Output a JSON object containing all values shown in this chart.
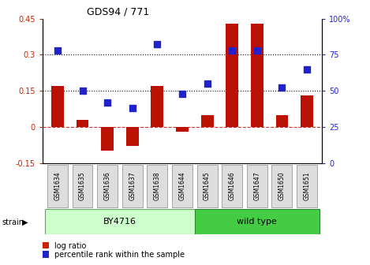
{
  "title": "GDS94 / 771",
  "samples": [
    "GSM1634",
    "GSM1635",
    "GSM1636",
    "GSM1637",
    "GSM1638",
    "GSM1644",
    "GSM1645",
    "GSM1646",
    "GSM1647",
    "GSM1650",
    "GSM1651"
  ],
  "log_ratio": [
    0.17,
    0.03,
    -0.1,
    -0.08,
    0.17,
    -0.02,
    0.05,
    0.43,
    0.43,
    0.05,
    0.13
  ],
  "percentile_rank": [
    78,
    50,
    42,
    38,
    82,
    48,
    55,
    78,
    78,
    52,
    65
  ],
  "ylim_left": [
    -0.15,
    0.45
  ],
  "ylim_right": [
    0,
    100
  ],
  "left_ticks": [
    -0.15,
    0,
    0.15,
    0.3,
    0.45
  ],
  "right_ticks": [
    0,
    25,
    50,
    75,
    100
  ],
  "hline_values": [
    0.15,
    0.3
  ],
  "bar_color": "#BB1100",
  "dot_color": "#2222CC",
  "zero_line_color": "#CC3333",
  "hline_color": "#111111",
  "by4716_n": 6,
  "wildtype_n": 5,
  "by4716_color": "#CCFFCC",
  "wildtype_color": "#44CC44",
  "by4716_edge": "#55AA55",
  "wildtype_edge": "#228822",
  "strain_label": "strain",
  "by4716_label": "BY4716",
  "wildtype_label": "wild type",
  "legend_logratio": "log ratio",
  "legend_percentile": "percentile rank within the sample",
  "bar_color_legend": "#CC2200",
  "dot_color_legend": "#2222CC",
  "tick_color_left": "#CC2200",
  "tick_color_right": "#2222CC",
  "xtick_bg": "#DDDDDD",
  "xtick_edge": "#999999",
  "bar_width": 0.5,
  "dot_size": 28
}
